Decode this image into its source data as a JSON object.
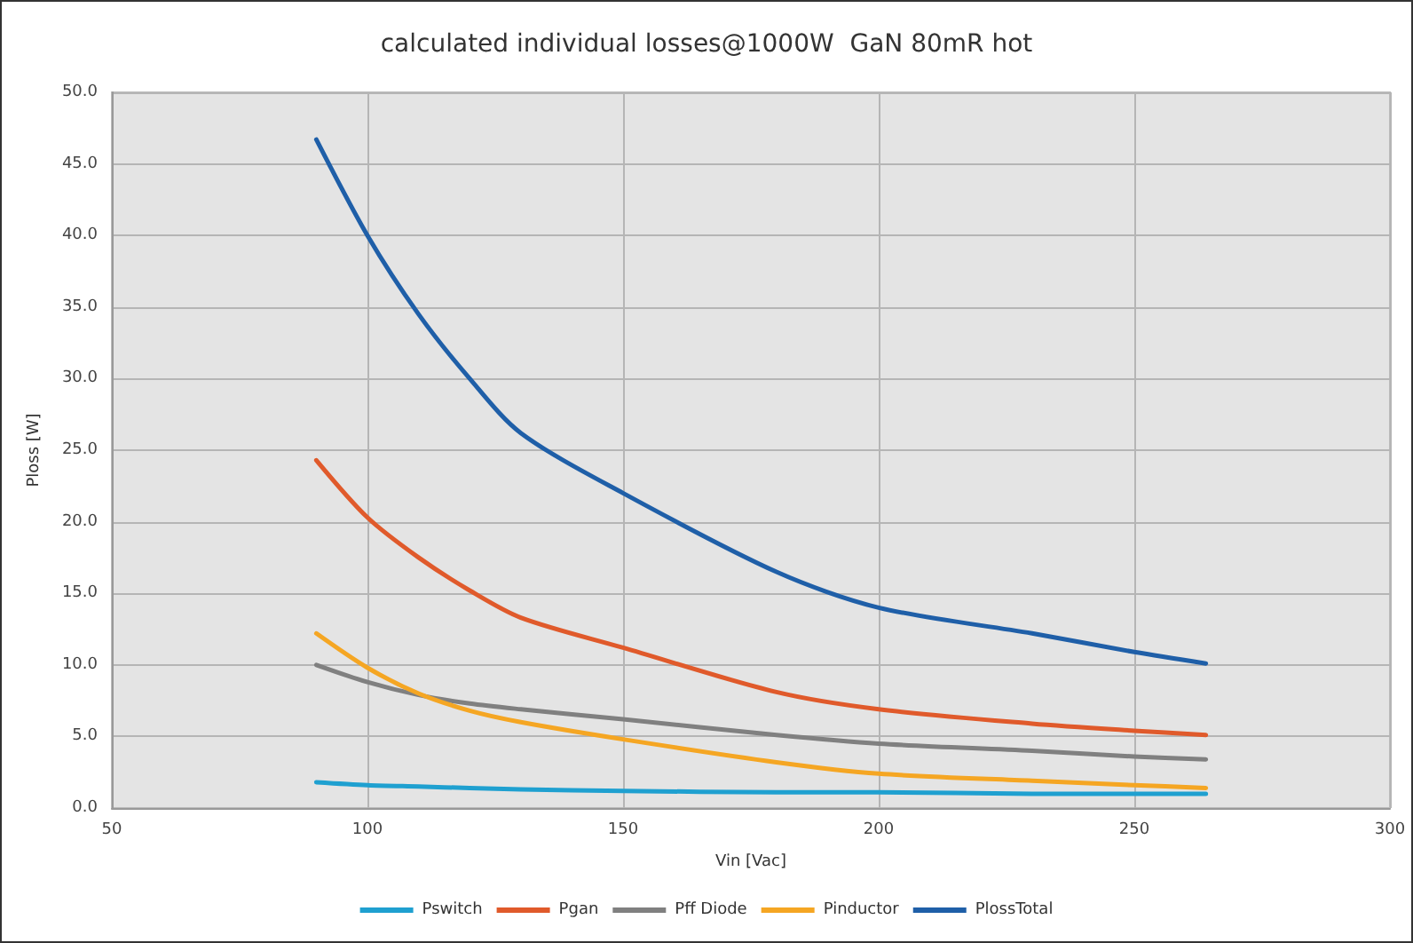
{
  "chart_data": {
    "type": "line",
    "title": "calculated individual losses@1000W  GaN 80mR hot",
    "xlabel": "Vin [Vac]",
    "ylabel": "Ploss [W]",
    "x": [
      90,
      100,
      110,
      120,
      130,
      150,
      180,
      200,
      230,
      250,
      264
    ],
    "series": [
      {
        "name": "Pswitch",
        "color": "#1fa0d0",
        "values": [
          1.8,
          1.6,
          1.5,
          1.4,
          1.3,
          1.2,
          1.1,
          1.1,
          1.0,
          1.0,
          1.0
        ]
      },
      {
        "name": "Pgan",
        "color": "#e05a2b",
        "values": [
          24.3,
          20.3,
          17.5,
          15.2,
          13.3,
          11.2,
          8.1,
          6.9,
          5.9,
          5.4,
          5.1
        ]
      },
      {
        "name": "Pff Diode",
        "color": "#808080",
        "values": [
          10.0,
          8.8,
          7.9,
          7.3,
          6.9,
          6.2,
          5.1,
          4.5,
          4.0,
          3.6,
          3.4
        ]
      },
      {
        "name": "Pinductor",
        "color": "#f5a623",
        "values": [
          12.2,
          9.8,
          8.0,
          6.8,
          6.0,
          4.8,
          3.2,
          2.4,
          1.9,
          1.6,
          1.4
        ]
      },
      {
        "name": "PlossTotal",
        "color": "#1f5fa8",
        "values": [
          46.7,
          40.0,
          34.5,
          30.0,
          26.2,
          22.0,
          16.5,
          14.0,
          12.2,
          10.9,
          10.1
        ]
      }
    ],
    "xlim": [
      50,
      300
    ],
    "xticks": [
      50,
      100,
      150,
      200,
      250,
      300
    ],
    "ylim": [
      0,
      50
    ],
    "yticks": [
      {
        "value": 0,
        "label": "0.0"
      },
      {
        "value": 5,
        "label": "5.0"
      },
      {
        "value": 10,
        "label": "10.0"
      },
      {
        "value": 15,
        "label": "15.0"
      },
      {
        "value": 20,
        "label": "20.0"
      },
      {
        "value": 25,
        "label": "25.0"
      },
      {
        "value": 30,
        "label": "30.0"
      },
      {
        "value": 35,
        "label": "35.0"
      },
      {
        "value": 40,
        "label": "40.0"
      },
      {
        "value": 45,
        "label": "45.0"
      },
      {
        "value": 50,
        "label": "50.0"
      }
    ],
    "grid": true,
    "legend": "bottom",
    "marker": "none",
    "line_style": "solid"
  }
}
